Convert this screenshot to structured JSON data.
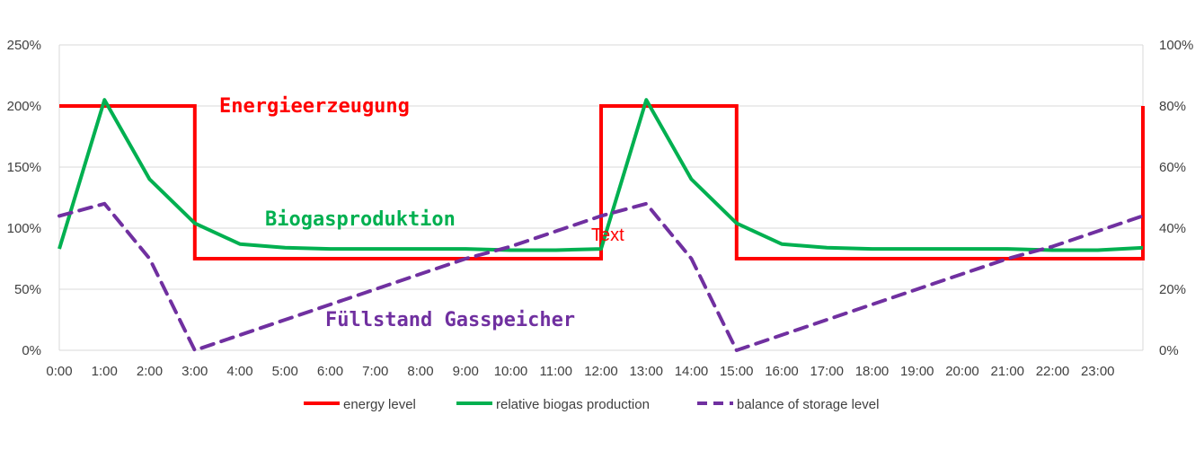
{
  "chart_data": {
    "type": "line",
    "categories": [
      "0:00",
      "1:00",
      "2:00",
      "3:00",
      "4:00",
      "5:00",
      "6:00",
      "7:00",
      "8:00",
      "9:00",
      "10:00",
      "11:00",
      "12:00",
      "13:00",
      "14:00",
      "15:00",
      "16:00",
      "17:00",
      "18:00",
      "19:00",
      "20:00",
      "21:00",
      "22:00",
      "23:00"
    ],
    "y_left": {
      "min": 0,
      "max": 250,
      "step": 50,
      "unit": "%",
      "ticks": [
        "0%",
        "50%",
        "100%",
        "150%",
        "200%",
        "250%"
      ]
    },
    "y_right": {
      "min": 0,
      "max": 100,
      "step": 20,
      "unit": "%",
      "ticks": [
        "0%",
        "20%",
        "40%",
        "60%",
        "80%",
        "100%"
      ]
    },
    "grid": true,
    "legend_position": "bottom",
    "series": [
      {
        "name": "energy level",
        "axis": "left",
        "color": "#ff0000",
        "style": "step",
        "points": [
          [
            0,
            200
          ],
          [
            3,
            200
          ],
          [
            3,
            75
          ],
          [
            12,
            75
          ],
          [
            12,
            200
          ],
          [
            15,
            200
          ],
          [
            15,
            75
          ],
          [
            24,
            75
          ],
          [
            24,
            200
          ]
        ]
      },
      {
        "name": "relative biogas production",
        "axis": "left",
        "color": "#00b050",
        "style": "solid",
        "points": [
          [
            0,
            83
          ],
          [
            1,
            205
          ],
          [
            2,
            140
          ],
          [
            3,
            104
          ],
          [
            4,
            87
          ],
          [
            5,
            84
          ],
          [
            6,
            83
          ],
          [
            7,
            83
          ],
          [
            8,
            83
          ],
          [
            9,
            83
          ],
          [
            10,
            82
          ],
          [
            11,
            82
          ],
          [
            12,
            83
          ],
          [
            13,
            205
          ],
          [
            14,
            140
          ],
          [
            15,
            104
          ],
          [
            16,
            87
          ],
          [
            17,
            84
          ],
          [
            18,
            83
          ],
          [
            19,
            83
          ],
          [
            20,
            83
          ],
          [
            21,
            83
          ],
          [
            22,
            82
          ],
          [
            23,
            82
          ],
          [
            24,
            84
          ]
        ]
      },
      {
        "name": "balance of storage level",
        "axis": "right",
        "color": "#7030a0",
        "style": "dashed",
        "points": [
          [
            0,
            44
          ],
          [
            1,
            48
          ],
          [
            2,
            30
          ],
          [
            3,
            0
          ],
          [
            4,
            5
          ],
          [
            5,
            10
          ],
          [
            6,
            15
          ],
          [
            7,
            20
          ],
          [
            8,
            25
          ],
          [
            9,
            30
          ],
          [
            10,
            34
          ],
          [
            11,
            39
          ],
          [
            12,
            44
          ],
          [
            13,
            48
          ],
          [
            14,
            30
          ],
          [
            15,
            0
          ],
          [
            16,
            5
          ],
          [
            17,
            10
          ],
          [
            18,
            15
          ],
          [
            19,
            20
          ],
          [
            20,
            25
          ],
          [
            21,
            30
          ],
          [
            22,
            34
          ],
          [
            23,
            39
          ],
          [
            24,
            44
          ]
        ]
      }
    ],
    "annotations": [
      {
        "text": "Energieerzeugung",
        "color": "#ff0000"
      },
      {
        "text": "Biogasproduktion",
        "color": "#00b050"
      },
      {
        "text": "Füllstand Gasspeicher",
        "color": "#7030a0"
      },
      {
        "text": "Text",
        "color": "#ff0000"
      }
    ]
  }
}
